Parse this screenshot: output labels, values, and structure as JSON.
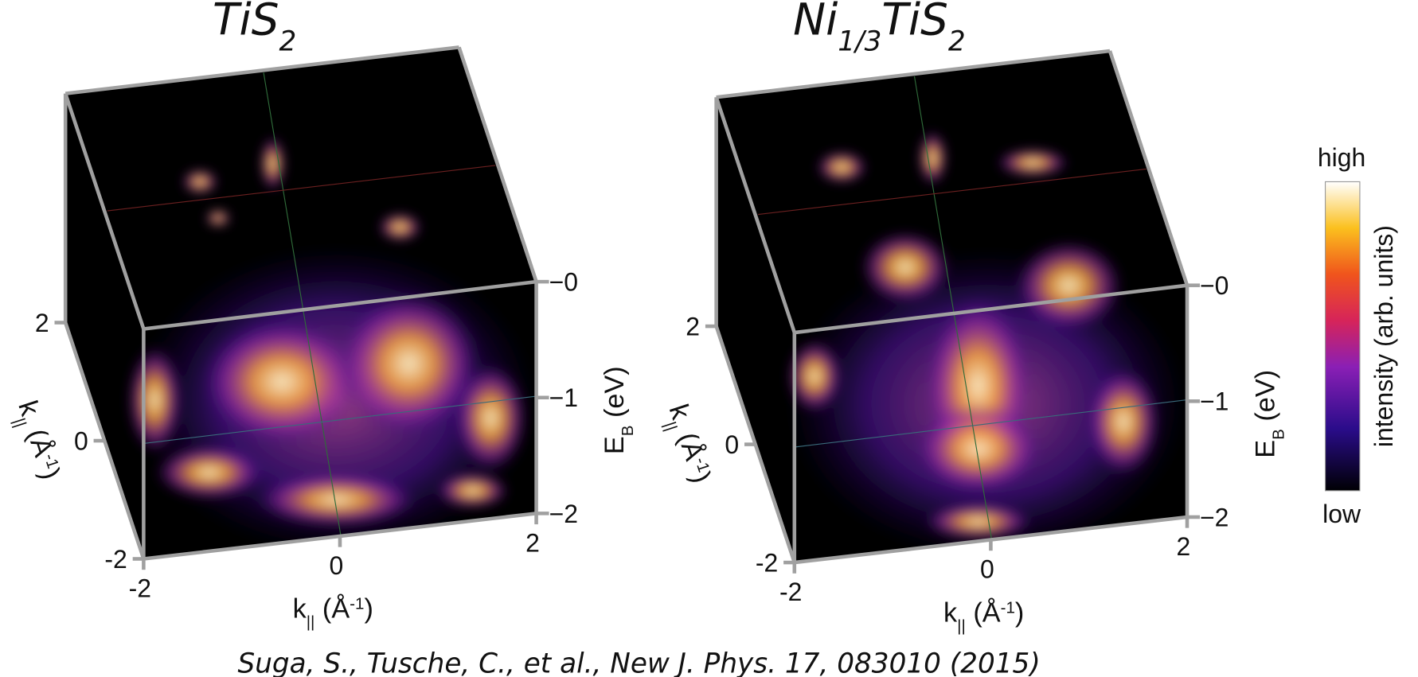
{
  "panels": [
    {
      "title": {
        "main": "TiS",
        "sub": "2"
      },
      "ky_axis": {
        "label": {
          "main": "k",
          "sub": "||",
          "unit": " (Å",
          "sup": "-1",
          "close": ")"
        },
        "ticks": [
          "2",
          "0",
          "-2"
        ]
      },
      "kx_axis": {
        "label": {
          "main": "k",
          "sub": "||",
          "unit": " (Å",
          "sup": "-1",
          "close": ")"
        },
        "ticks": [
          "-2",
          "0",
          "2"
        ]
      },
      "e_axis": {
        "label": {
          "main": "E",
          "sub": "B",
          "unit": " (eV)"
        },
        "ticks": [
          "−0",
          "−1",
          "−2"
        ]
      }
    },
    {
      "title": {
        "pre": "Ni",
        "pre_sub": "1/3",
        "main": "TiS",
        "sub": "2"
      },
      "ky_axis": {
        "label": {
          "main": "k",
          "sub": "||",
          "unit": " (Å",
          "sup": "-1",
          "close": ")"
        },
        "ticks": [
          "2",
          "0",
          "-2"
        ]
      },
      "kx_axis": {
        "label": {
          "main": "k",
          "sub": "||",
          "unit": " (Å",
          "sup": "-1",
          "close": ")"
        },
        "ticks": [
          "-2",
          "0",
          "2"
        ]
      },
      "e_axis": {
        "label": {
          "main": "E",
          "sub": "B",
          "unit": " (eV)"
        },
        "ticks": [
          "−0",
          "−1",
          "−2"
        ]
      }
    }
  ],
  "colorbar": {
    "high": "high",
    "low": "low",
    "label": "intensity (arb. units)"
  },
  "citation": "Suga, S., Tusche, C., et al., New J. Phys. 17, 083010 (2015)"
}
